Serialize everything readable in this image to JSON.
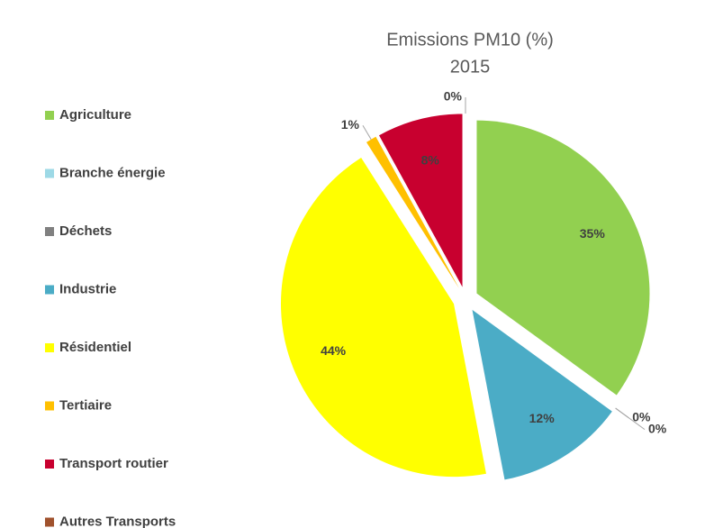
{
  "chart_data": {
    "type": "pie",
    "title": "Emissions PM10 (%)",
    "subtitle": "2015",
    "categories": [
      "Agriculture",
      "Branche énergie",
      "Déchets",
      "Industrie",
      "Résidentiel",
      "Tertiaire",
      "Transport routier",
      "Autres Transports"
    ],
    "values": [
      35,
      0,
      0,
      12,
      44,
      1,
      8,
      0
    ],
    "value_labels": [
      "35%",
      "0%",
      "0%",
      "12%",
      "44%",
      "1%",
      "8%",
      "0%"
    ],
    "colors": [
      "#92d050",
      "#9dd9e6",
      "#808080",
      "#4bacc6",
      "#ffff00",
      "#ffc000",
      "#c8002f",
      "#a0522d"
    ],
    "legend": "left"
  }
}
